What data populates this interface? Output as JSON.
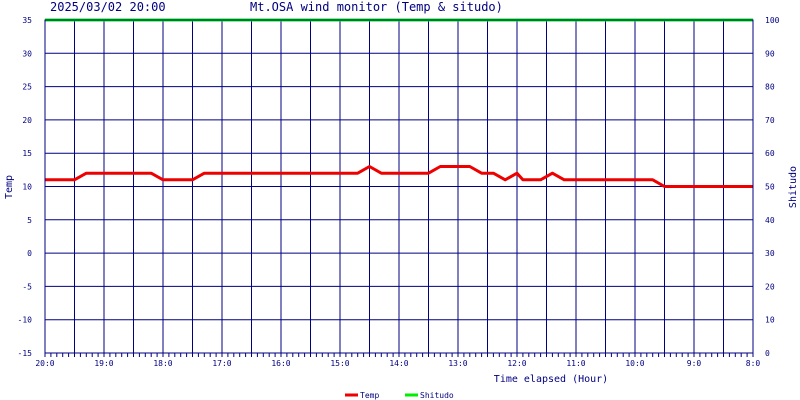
{
  "header": {
    "date": "2025/03/02 20:00",
    "title": "Mt.OSA wind monitor (Temp & situdo)"
  },
  "chart_data": {
    "type": "line",
    "title": "Mt.OSA wind monitor (Temp & situdo)",
    "xlabel": "Time elapsed (Hour)",
    "ylabel": "Temp",
    "y2label": "Shitudo",
    "xlim": [
      0,
      12
    ],
    "x_reversed": true,
    "ylim": [
      -15,
      35
    ],
    "y2lim": [
      0,
      100
    ],
    "grid": true,
    "legend_position": "bottom-center",
    "x_tick_labels": [
      {
        "x": 0,
        "label": "20:0"
      },
      {
        "x": 1,
        "label": "19:0"
      },
      {
        "x": 2,
        "label": "18:0"
      },
      {
        "x": 3,
        "label": "17:0"
      },
      {
        "x": 4,
        "label": "16:0"
      },
      {
        "x": 5,
        "label": "15:0"
      },
      {
        "x": 6,
        "label": "14:0"
      },
      {
        "x": 7,
        "label": "13:0"
      },
      {
        "x": 8,
        "label": "12:0"
      },
      {
        "x": 9,
        "label": "11:0"
      },
      {
        "x": 10,
        "label": "10:0"
      },
      {
        "x": 11,
        "label": "9:0"
      },
      {
        "x": 12,
        "label": "8:0"
      }
    ],
    "y_ticks": [
      "35",
      "30",
      "25",
      "20",
      "15",
      "10",
      "5",
      "0",
      "-5",
      "-10",
      "-15"
    ],
    "y2_ticks": [
      "100",
      "90",
      "80",
      "70",
      "60",
      "50",
      "40",
      "30",
      "20",
      "10",
      "0"
    ],
    "series": [
      {
        "name": "Temp",
        "axis": "left",
        "color": "#ee0000",
        "points": [
          [
            0,
            11
          ],
          [
            0.5,
            11
          ],
          [
            0.7,
            12
          ],
          [
            1,
            12
          ],
          [
            1.5,
            12
          ],
          [
            1.8,
            12
          ],
          [
            2.0,
            11
          ],
          [
            2.5,
            11
          ],
          [
            2.7,
            12
          ],
          [
            3,
            12
          ],
          [
            4,
            12
          ],
          [
            5,
            12
          ],
          [
            5.3,
            12
          ],
          [
            5.5,
            13
          ],
          [
            5.7,
            12
          ],
          [
            6,
            12
          ],
          [
            6.5,
            12
          ],
          [
            6.7,
            13
          ],
          [
            7,
            13
          ],
          [
            7.2,
            13
          ],
          [
            7.4,
            12
          ],
          [
            7.6,
            12
          ],
          [
            7.8,
            11
          ],
          [
            8.0,
            12
          ],
          [
            8.1,
            11
          ],
          [
            8.4,
            11
          ],
          [
            8.6,
            12
          ],
          [
            8.8,
            11
          ],
          [
            9,
            11
          ],
          [
            10,
            11
          ],
          [
            10.3,
            11
          ],
          [
            10.5,
            10
          ],
          [
            11,
            10
          ],
          [
            12,
            10
          ]
        ]
      },
      {
        "name": "Shitudo",
        "axis": "right",
        "color": "#00ee00",
        "points": [
          [
            0,
            100
          ],
          [
            12,
            100
          ]
        ]
      }
    ]
  }
}
